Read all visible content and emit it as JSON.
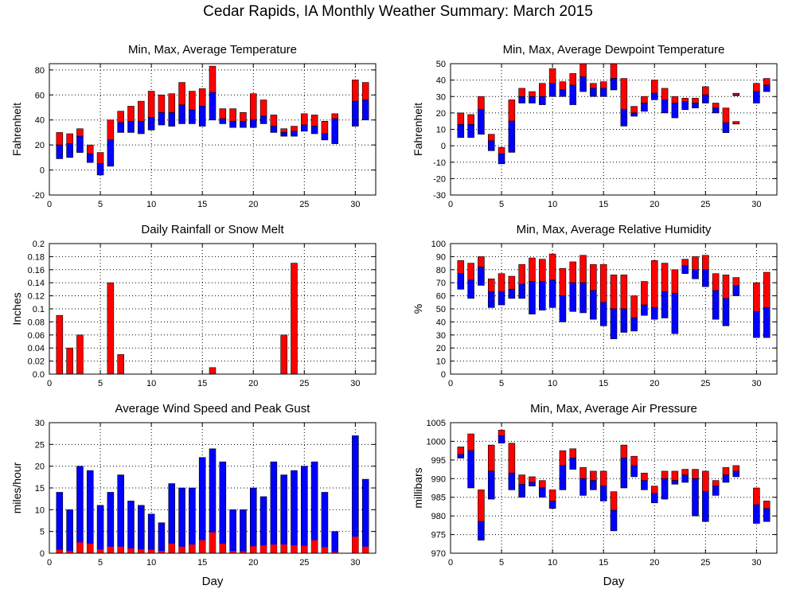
{
  "page": {
    "title": "Cedar Rapids, IA Monthly Weather Summary: March 2015"
  },
  "colors": {
    "red": "#ff0000",
    "blue": "#0000ff",
    "min_marker": "#000000"
  },
  "chart_data": [
    {
      "id": "temperature",
      "type": "bar",
      "subtype": "range",
      "title": "Min, Max, Average Temperature",
      "xlabel": "",
      "ylabel": "Fahrenheit",
      "xlim": [
        0,
        32
      ],
      "xticks": [
        0,
        5,
        10,
        15,
        20,
        25,
        30
      ],
      "ylim": [
        -20,
        85
      ],
      "yticks": [
        -20,
        0,
        20,
        40,
        60,
        80
      ],
      "days": [
        1,
        2,
        3,
        4,
        5,
        6,
        7,
        8,
        9,
        10,
        11,
        12,
        13,
        14,
        15,
        16,
        17,
        18,
        19,
        20,
        21,
        22,
        23,
        24,
        25,
        26,
        27,
        28,
        29,
        30,
        31
      ],
      "max": [
        30,
        29,
        33,
        20,
        14,
        40,
        47,
        51,
        55,
        63,
        60,
        61,
        70,
        63,
        65,
        83,
        49,
        49,
        46,
        61,
        56,
        44,
        33,
        35,
        45,
        44,
        39,
        45,
        null,
        72,
        70
      ],
      "avg": [
        20,
        21,
        27,
        13,
        5,
        24,
        38,
        39,
        39,
        42,
        46,
        46,
        52,
        48,
        51,
        62,
        41,
        39,
        39,
        40,
        43,
        35,
        30,
        31,
        36,
        35,
        29,
        41,
        null,
        55,
        56
      ],
      "min": [
        9,
        10,
        14,
        6,
        -4,
        3,
        30,
        30,
        29,
        32,
        36,
        35,
        37,
        37,
        35,
        40,
        37,
        34,
        34,
        34,
        37,
        30,
        27,
        27,
        31,
        29,
        24,
        21,
        null,
        35,
        40
      ],
      "grid": true
    },
    {
      "id": "dewpoint",
      "type": "bar",
      "subtype": "range",
      "title": "Min, Max, Average Dewpoint Temperature",
      "xlabel": "",
      "ylabel": "Fahrenheit",
      "xlim": [
        0,
        32
      ],
      "xticks": [
        0,
        5,
        10,
        15,
        20,
        25,
        30
      ],
      "ylim": [
        -30,
        50
      ],
      "yticks": [
        -30,
        -20,
        -10,
        0,
        10,
        20,
        30,
        40,
        50
      ],
      "days": [
        1,
        2,
        3,
        4,
        5,
        6,
        7,
        8,
        9,
        10,
        11,
        12,
        13,
        14,
        15,
        16,
        17,
        18,
        19,
        20,
        21,
        22,
        23,
        24,
        25,
        26,
        27,
        28,
        29,
        30,
        31
      ],
      "max": [
        20,
        19,
        30,
        7,
        -1,
        28,
        35,
        33,
        38,
        47,
        39,
        44,
        50,
        38,
        39,
        50,
        41,
        24,
        30,
        40,
        35,
        30,
        29,
        29,
        36,
        26,
        23,
        32,
        null,
        38,
        41
      ],
      "avg": [
        13,
        13,
        22,
        3,
        -5,
        15,
        30,
        30,
        30,
        38,
        34,
        37,
        42,
        35,
        35,
        41,
        22,
        20,
        26,
        32,
        28,
        26,
        27,
        26,
        31,
        23,
        14,
        31,
        null,
        33,
        37
      ],
      "min": [
        5,
        5,
        7,
        -3,
        -11,
        -4,
        26,
        26,
        25,
        30,
        30,
        25,
        33,
        30,
        30,
        34,
        12,
        18,
        21,
        28,
        20,
        17,
        22,
        23,
        26,
        20,
        8,
        31,
        null,
        26,
        33
      ],
      "extra_markers": [
        {
          "day": 28,
          "value": 14
        }
      ],
      "grid": true
    },
    {
      "id": "rainfall",
      "type": "bar",
      "title": "Daily Rainfall or Snow Melt",
      "xlabel": "",
      "ylabel": "Inches",
      "xlim": [
        0,
        32
      ],
      "xticks": [
        0,
        5,
        10,
        15,
        20,
        25,
        30
      ],
      "ylim": [
        0,
        0.2
      ],
      "yticks": [
        0,
        0.02,
        0.04,
        0.06,
        0.08,
        0.1,
        0.12,
        0.14,
        0.16,
        0.18,
        0.2
      ],
      "ytick_labels": [
        "0.0",
        "0.02",
        "0.04",
        "0.06",
        "0.08",
        "0.1",
        "0.12",
        "0.14",
        "0.16",
        "0.18",
        "0.2"
      ],
      "days": [
        1,
        2,
        3,
        6,
        7,
        16,
        23,
        24
      ],
      "values": [
        0.09,
        0.04,
        0.06,
        0.14,
        0.03,
        0.01,
        0.06,
        0.17
      ],
      "grid": true
    },
    {
      "id": "humidity",
      "type": "bar",
      "subtype": "range",
      "title": "Min, Max, Average Relative Humidity",
      "xlabel": "",
      "ylabel": "%",
      "xlim": [
        0,
        32
      ],
      "xticks": [
        0,
        5,
        10,
        15,
        20,
        25,
        30
      ],
      "ylim": [
        0,
        100
      ],
      "yticks": [
        0,
        10,
        20,
        30,
        40,
        50,
        60,
        70,
        80,
        90,
        100
      ],
      "days": [
        1,
        2,
        3,
        4,
        5,
        6,
        7,
        8,
        9,
        10,
        11,
        12,
        13,
        14,
        15,
        16,
        17,
        18,
        19,
        20,
        21,
        22,
        23,
        24,
        25,
        26,
        27,
        28,
        29,
        30,
        31
      ],
      "max": [
        87,
        85,
        90,
        73,
        77,
        75,
        84,
        89,
        88,
        92,
        81,
        86,
        91,
        84,
        84,
        76,
        76,
        60,
        71,
        87,
        85,
        80,
        88,
        90,
        91,
        77,
        76,
        74,
        null,
        70,
        78
      ],
      "avg": [
        77,
        72,
        82,
        63,
        63,
        65,
        69,
        71,
        71,
        72,
        60,
        70,
        70,
        64,
        55,
        50,
        50,
        43,
        53,
        51,
        63,
        62,
        83,
        80,
        80,
        64,
        58,
        68,
        null,
        48,
        51
      ],
      "min": [
        65,
        58,
        68,
        51,
        53,
        58,
        58,
        46,
        49,
        51,
        40,
        48,
        47,
        42,
        37,
        27,
        32,
        33,
        45,
        42,
        43,
        31,
        77,
        73,
        67,
        42,
        37,
        60,
        null,
        28,
        28
      ],
      "grid": true
    },
    {
      "id": "wind",
      "type": "bar",
      "title": "Average Wind Speed and Peak Gust",
      "xlabel": "Day",
      "ylabel": "miles/hour",
      "xlim": [
        0,
        32
      ],
      "xticks": [
        0,
        5,
        10,
        15,
        20,
        25,
        30
      ],
      "ylim": [
        0,
        30
      ],
      "yticks": [
        0,
        5,
        10,
        15,
        20,
        25,
        30
      ],
      "days": [
        1,
        2,
        3,
        4,
        5,
        6,
        7,
        8,
        9,
        10,
        11,
        12,
        13,
        14,
        15,
        16,
        17,
        18,
        19,
        20,
        21,
        22,
        23,
        24,
        25,
        26,
        27,
        28,
        29,
        30,
        31
      ],
      "series": [
        {
          "values": [
            14,
            10,
            20,
            19,
            11,
            14,
            18,
            12,
            11,
            9,
            7,
            16,
            15,
            15,
            22,
            24,
            21,
            10,
            10,
            15,
            13,
            21,
            18,
            19,
            20,
            21,
            14,
            5,
            null,
            27,
            17
          ]
        },
        {
          "values": [
            0.8,
            0.5,
            2.5,
            2.2,
            0.9,
            1.5,
            1.5,
            1.1,
            0.9,
            0.8,
            0.5,
            2.2,
            1.5,
            2,
            3,
            4.8,
            2.2,
            0.5,
            0.4,
            1.6,
            1.8,
            2,
            2,
            1.8,
            1.7,
            3,
            1.4,
            0.3,
            null,
            3.8,
            1.5
          ]
        }
      ],
      "grid": true
    },
    {
      "id": "pressure",
      "type": "bar",
      "subtype": "range",
      "title": "Min, Max, Average Air Pressure",
      "xlabel": "Day",
      "ylabel": "millibars",
      "xlim": [
        0,
        32
      ],
      "xticks": [
        0,
        5,
        10,
        15,
        20,
        25,
        30
      ],
      "ylim": [
        970,
        1005
      ],
      "yticks": [
        970,
        975,
        980,
        985,
        990,
        995,
        1000,
        1005
      ],
      "days": [
        1,
        2,
        3,
        4,
        5,
        6,
        7,
        8,
        9,
        10,
        11,
        12,
        13,
        14,
        15,
        16,
        17,
        18,
        19,
        20,
        21,
        22,
        23,
        24,
        25,
        26,
        27,
        28,
        29,
        30,
        31
      ],
      "max": [
        998.5,
        1002,
        987,
        999,
        1003,
        999.5,
        991,
        990.5,
        989.5,
        987,
        997.5,
        998,
        993,
        992,
        992,
        986.5,
        999,
        996,
        991.5,
        988,
        992,
        992,
        992.5,
        992.5,
        992,
        989.5,
        993,
        993.5,
        null,
        987.5,
        984
      ],
      "avg": [
        996.5,
        997.5,
        978.5,
        992,
        1001.5,
        991.5,
        988.5,
        989,
        987.5,
        984,
        993.5,
        995.5,
        990,
        989.5,
        988,
        981.5,
        995.5,
        993.5,
        989.5,
        986,
        990,
        989.5,
        991,
        990,
        986.5,
        988,
        991,
        992,
        null,
        983,
        982
      ],
      "min": [
        995.5,
        987.5,
        973.5,
        984.5,
        999.5,
        987,
        985,
        988,
        985,
        982,
        987,
        992.5,
        985.5,
        987,
        984,
        976,
        987.5,
        990.5,
        987,
        983.5,
        984.5,
        988.5,
        989,
        980,
        978.5,
        985.5,
        989,
        990.5,
        null,
        978,
        978.5
      ],
      "grid": true
    }
  ]
}
